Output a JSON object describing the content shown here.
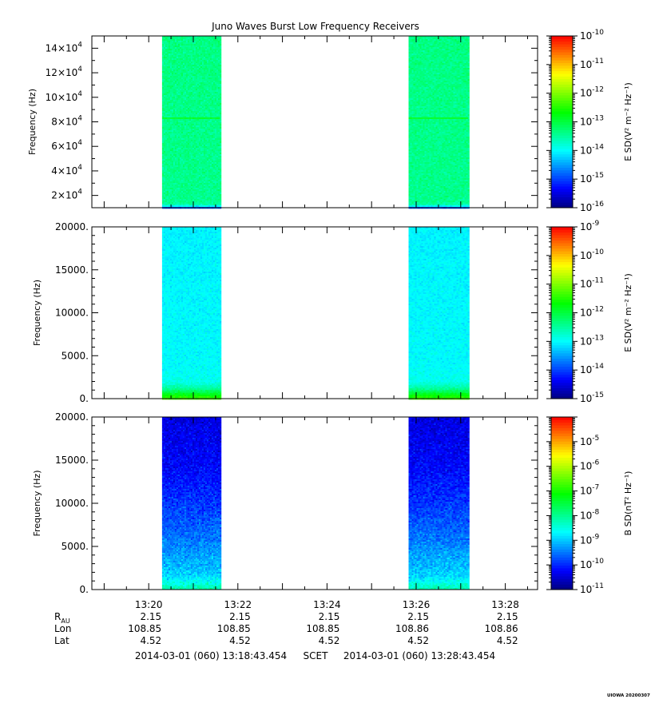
{
  "title": "Juno Waves Burst Low Frequency Receivers",
  "colors": {
    "colormap": [
      "#00007f",
      "#0000ff",
      "#007fff",
      "#00ffff",
      "#00ff7f",
      "#00ff00",
      "#7fff00",
      "#ffff00",
      "#ff7f00",
      "#ff0000"
    ],
    "axis": "#000000",
    "background": "#ffffff"
  },
  "time_axis": {
    "start_minutes": 1278.7242,
    "end_minutes": 1288.7242,
    "tick_labels": [
      "13:20",
      "13:22",
      "13:24",
      "13:26",
      "13:28"
    ],
    "tick_minutes": [
      1280,
      1282,
      1284,
      1286,
      1288
    ],
    "minor_step_minutes": 0.5
  },
  "ephemeris": {
    "rows": [
      {
        "label": "R",
        "sub": "AU",
        "values": [
          "2.15",
          "2.15",
          "2.15",
          "2.15",
          "2.15"
        ]
      },
      {
        "label": "Lon",
        "sub": "",
        "values": [
          "108.85",
          "108.85",
          "108.85",
          "108.86",
          "108.86"
        ]
      },
      {
        "label": "Lat",
        "sub": "",
        "values": [
          "4.52",
          "4.52",
          "4.52",
          "4.52",
          "4.52"
        ]
      }
    ]
  },
  "footer": {
    "start": "2014-03-01 (060) 13:18:43.454",
    "scet": "SCET",
    "end": "2014-03-01 (060) 13:28:43.454",
    "stamp": "UIOWA 20200307"
  },
  "chart_data": [
    {
      "type": "heatmap",
      "title": "Juno Waves Burst Low Frequency Receivers",
      "ylabel": "Frequency (Hz)",
      "ylim": [
        10000,
        150000
      ],
      "ytick_values": [
        20000,
        40000,
        60000,
        80000,
        100000,
        120000,
        140000
      ],
      "ytick_labels": [
        {
          "mantissa": "2×10",
          "exp": "4"
        },
        {
          "mantissa": "4×10",
          "exp": "4"
        },
        {
          "mantissa": "6×10",
          "exp": "4"
        },
        {
          "mantissa": "8×10",
          "exp": "4"
        },
        {
          "mantissa": "10×10",
          "exp": "4"
        },
        {
          "mantissa": "12×10",
          "exp": "4"
        },
        {
          "mantissa": "14×10",
          "exp": "4"
        }
      ],
      "yminor_step": 10000,
      "colorbar": {
        "label": "E SD(V² m⁻² Hz⁻¹)",
        "log_min": -16,
        "log_max": -10,
        "tick_exponents": [
          "-10",
          "-11",
          "-12",
          "-13",
          "-14",
          "-15",
          "-16"
        ]
      },
      "bursts": [
        {
          "start_minutes": 1280.3,
          "end_minutes": 1281.6
        },
        {
          "start_minutes": 1285.83,
          "end_minutes": 1287.17
        }
      ],
      "profile": [
        [
          10000,
          -14.8
        ],
        [
          12000,
          -13.6
        ],
        [
          15000,
          -13.4
        ],
        [
          150000,
          -13.35
        ]
      ],
      "line_frequency": 83000,
      "noise": 0.18
    },
    {
      "type": "heatmap",
      "ylabel": "Frequency (Hz)",
      "ylim": [
        0,
        20000
      ],
      "ytick_values": [
        0,
        5000,
        10000,
        15000,
        20000
      ],
      "ytick_labels": [
        "0.",
        "5000.",
        "10000.",
        "15000.",
        "20000."
      ],
      "yminor_step": 1000,
      "colorbar": {
        "label": "E SD(V² m⁻² Hz⁻¹)",
        "log_min": -15,
        "log_max": -9,
        "tick_exponents": [
          "-9",
          "-10",
          "-11",
          "-12",
          "-13",
          "-14",
          "-15"
        ]
      },
      "bursts": [
        {
          "start_minutes": 1280.3,
          "end_minutes": 1281.6
        },
        {
          "start_minutes": 1285.83,
          "end_minutes": 1287.17
        }
      ],
      "profile": [
        [
          0,
          -11.3
        ],
        [
          300,
          -11.6
        ],
        [
          700,
          -12.0
        ],
        [
          1200,
          -12.5
        ],
        [
          2000,
          -12.9
        ],
        [
          4000,
          -13.0
        ],
        [
          20000,
          -13.05
        ]
      ],
      "noise": 0.15
    },
    {
      "type": "heatmap",
      "ylabel": "Frequency (Hz)",
      "ylim": [
        0,
        20000
      ],
      "ytick_values": [
        0,
        5000,
        10000,
        15000,
        20000
      ],
      "ytick_labels": [
        "0.",
        "5000.",
        "10000.",
        "15000.",
        "20000."
      ],
      "yminor_step": 1000,
      "colorbar": {
        "label": "B SD(nT² Hz⁻¹)",
        "log_min": -11,
        "log_max": -4,
        "tick_exponents": [
          "-5",
          "-6",
          "-7",
          "-8",
          "-9",
          "-10",
          "-11"
        ]
      },
      "bursts": [
        {
          "start_minutes": 1280.3,
          "end_minutes": 1281.6
        },
        {
          "start_minutes": 1285.83,
          "end_minutes": 1287.17
        }
      ],
      "profile": [
        [
          0,
          -8.1
        ],
        [
          500,
          -8.4
        ],
        [
          1500,
          -8.9
        ],
        [
          3000,
          -9.1
        ],
        [
          6000,
          -9.5
        ],
        [
          10000,
          -9.9
        ],
        [
          14000,
          -10.2
        ],
        [
          20000,
          -10.4
        ]
      ],
      "noise": 0.3
    }
  ]
}
